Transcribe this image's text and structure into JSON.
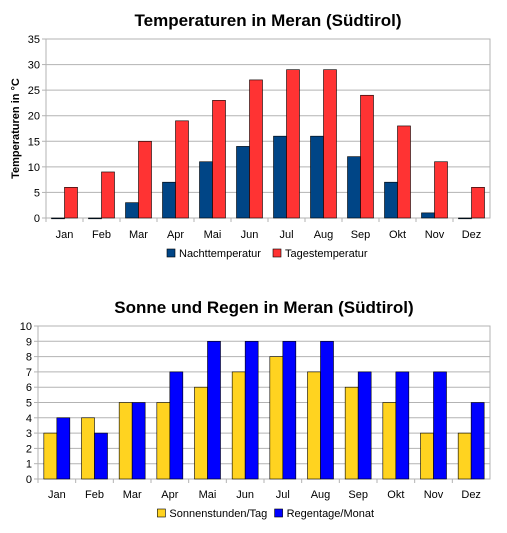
{
  "chart_data": [
    {
      "type": "bar",
      "title": "Temperaturen in Meran (Südtirol)",
      "xlabel": "",
      "ylabel": "Temperaturen in °C",
      "ylim": [
        0,
        35
      ],
      "yticks": [
        0,
        5,
        10,
        15,
        20,
        25,
        30,
        35
      ],
      "grid": true,
      "legend": "bottom",
      "categories": [
        "Jan",
        "Feb",
        "Mar",
        "Apr",
        "Mai",
        "Jun",
        "Jul",
        "Aug",
        "Sep",
        "Okt",
        "Nov",
        "Dez"
      ],
      "series": [
        {
          "name": "Nachttemperatur",
          "color": "#004586",
          "values": [
            0,
            0,
            3,
            7,
            11,
            14,
            16,
            16,
            12,
            7,
            1,
            0
          ]
        },
        {
          "name": "Tagestemperatur",
          "color": "#ff3333",
          "values": [
            6,
            9,
            15,
            19,
            23,
            27,
            29,
            29,
            24,
            18,
            11,
            6
          ]
        }
      ]
    },
    {
      "type": "bar",
      "title": "Sonne und Regen in Meran (Südtirol)",
      "xlabel": "",
      "ylabel": "",
      "ylim": [
        0,
        10
      ],
      "yticks": [
        0,
        1,
        2,
        3,
        4,
        5,
        6,
        7,
        8,
        9,
        10
      ],
      "grid": true,
      "legend": "bottom",
      "categories": [
        "Jan",
        "Feb",
        "Mar",
        "Apr",
        "Mai",
        "Jun",
        "Jul",
        "Aug",
        "Sep",
        "Okt",
        "Nov",
        "Dez"
      ],
      "series": [
        {
          "name": "Sonnenstunden/Tag",
          "color": "#ffd320",
          "values": [
            3,
            4,
            5,
            5,
            6,
            7,
            8,
            7,
            6,
            5,
            3,
            3
          ]
        },
        {
          "name": "Regentage/Monat",
          "color": "#0000ff",
          "values": [
            4,
            3,
            5,
            7,
            9,
            9,
            9,
            9,
            7,
            7,
            7,
            5
          ]
        }
      ]
    }
  ]
}
